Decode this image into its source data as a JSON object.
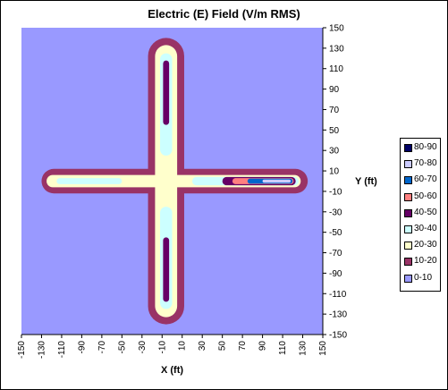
{
  "chart_data": {
    "type": "heatmap",
    "title": "Electric (E) Field (V/m RMS)",
    "xlabel": "X (ft)",
    "ylabel": "Y (ft)",
    "xlim": [
      -150,
      150
    ],
    "ylim": [
      -150,
      150
    ],
    "x_ticks": [
      -150,
      -130,
      -110,
      -90,
      -70,
      -50,
      -30,
      -10,
      10,
      30,
      50,
      70,
      90,
      110,
      130,
      150
    ],
    "y_ticks": [
      150,
      130,
      110,
      90,
      70,
      50,
      30,
      10,
      -10,
      -30,
      -50,
      -70,
      -90,
      -110,
      -130,
      -150
    ],
    "legend_position": "right",
    "levels": [
      {
        "label": "80-90",
        "color": "#000066"
      },
      {
        "label": "70-80",
        "color": "#ccccff"
      },
      {
        "label": "60-70",
        "color": "#0066cc"
      },
      {
        "label": "50-60",
        "color": "#ff8080"
      },
      {
        "label": "40-50",
        "color": "#660066"
      },
      {
        "label": "30-40",
        "color": "#ccffff"
      },
      {
        "label": "20-30",
        "color": "#ffffcc"
      },
      {
        "label": "10-20",
        "color": "#993366"
      },
      {
        "label": "0-10",
        "color": "#9999ff"
      }
    ],
    "contours": [
      {
        "level": "10-20",
        "shape": "arm-h",
        "x": [
          -130,
          135
        ],
        "y_half": 12
      },
      {
        "level": "10-20",
        "shape": "arm-v",
        "y": [
          -140,
          140
        ],
        "x_half": 18,
        "x_center": -6
      },
      {
        "level": "20-30",
        "shape": "arm-h",
        "x": [
          -125,
          128
        ],
        "y_half": 6
      },
      {
        "level": "20-30",
        "shape": "arm-v",
        "y": [
          -133,
          133
        ],
        "x_half": 11,
        "x_center": -6
      },
      {
        "level": "30-40",
        "shape": "arm-h",
        "x": [
          -115,
          -50
        ],
        "y_half": 3
      },
      {
        "level": "30-40",
        "shape": "arm-h",
        "x": [
          20,
          126
        ],
        "y_half": 4
      },
      {
        "level": "30-40",
        "shape": "arm-v",
        "y": [
          -125,
          -25
        ],
        "x_half": 6,
        "x_center": -6
      },
      {
        "level": "30-40",
        "shape": "arm-v",
        "y": [
          25,
          125
        ],
        "x_half": 6,
        "x_center": -6
      },
      {
        "level": "40-50",
        "shape": "arm-h",
        "x": [
          50,
          123
        ],
        "y_half": 4
      },
      {
        "level": "40-50",
        "shape": "arm-v",
        "y": [
          -118,
          -55
        ],
        "x_half": 3,
        "x_center": -6
      },
      {
        "level": "40-50",
        "shape": "arm-v",
        "y": [
          55,
          118
        ],
        "x_half": 3,
        "x_center": -6
      },
      {
        "level": "50-60",
        "shape": "arm-h",
        "x": [
          60,
          121
        ],
        "y_half": 3
      },
      {
        "level": "60-70",
        "shape": "arm-h",
        "x": [
          75,
          120
        ],
        "y_half": 2.5
      },
      {
        "level": "70-80",
        "shape": "arm-h",
        "x": [
          90,
          118
        ],
        "y_half": 1.5
      }
    ]
  }
}
